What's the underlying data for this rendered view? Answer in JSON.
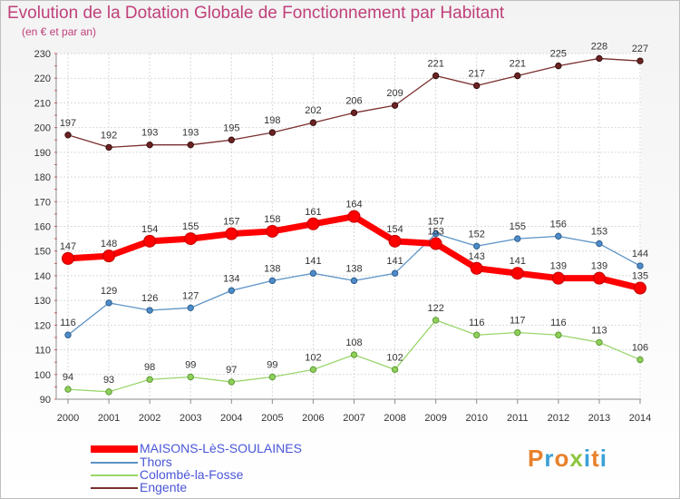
{
  "title": "Evolution de la Dotation Globale de Fonctionnement par Habitant",
  "subtitle": "(en € et par an)",
  "logo": {
    "text": "Proxiti",
    "colors": [
      "#e8812b",
      "#3aa0d8",
      "#e8812b",
      "#8dc63f",
      "#3aa0d8",
      "#e8812b",
      "#3aa0d8"
    ]
  },
  "chart_data": {
    "type": "line",
    "x": [
      "2000",
      "2001",
      "2002",
      "2003",
      "2004",
      "2005",
      "2006",
      "2007",
      "2008",
      "2009",
      "2010",
      "2011",
      "2012",
      "2013",
      "2014"
    ],
    "ylim": [
      90,
      230
    ],
    "yticks": [
      90,
      100,
      110,
      120,
      130,
      140,
      150,
      160,
      170,
      180,
      190,
      200,
      210,
      220,
      230
    ],
    "grid": true,
    "legend_position": "bottom-left",
    "series": [
      {
        "name": "MAISONS-LèS-SOULAINES",
        "color": "#ff0000",
        "values": [
          147,
          148,
          154,
          155,
          157,
          158,
          161,
          164,
          154,
          153,
          143,
          141,
          139,
          139,
          135
        ]
      },
      {
        "name": "Thors",
        "color": "#5c93c6",
        "values": [
          116,
          129,
          126,
          127,
          134,
          138,
          141,
          138,
          141,
          157,
          152,
          155,
          156,
          153,
          144
        ]
      },
      {
        "name": "Colombé-la-Fosse",
        "color": "#9ad66b",
        "values": [
          94,
          93,
          98,
          99,
          97,
          99,
          102,
          108,
          102,
          122,
          116,
          117,
          116,
          113,
          106
        ]
      },
      {
        "name": "Engente",
        "color": "#7a2f2f",
        "values": [
          197,
          192,
          193,
          193,
          195,
          198,
          202,
          206,
          209,
          221,
          217,
          221,
          225,
          228,
          227
        ]
      }
    ]
  }
}
